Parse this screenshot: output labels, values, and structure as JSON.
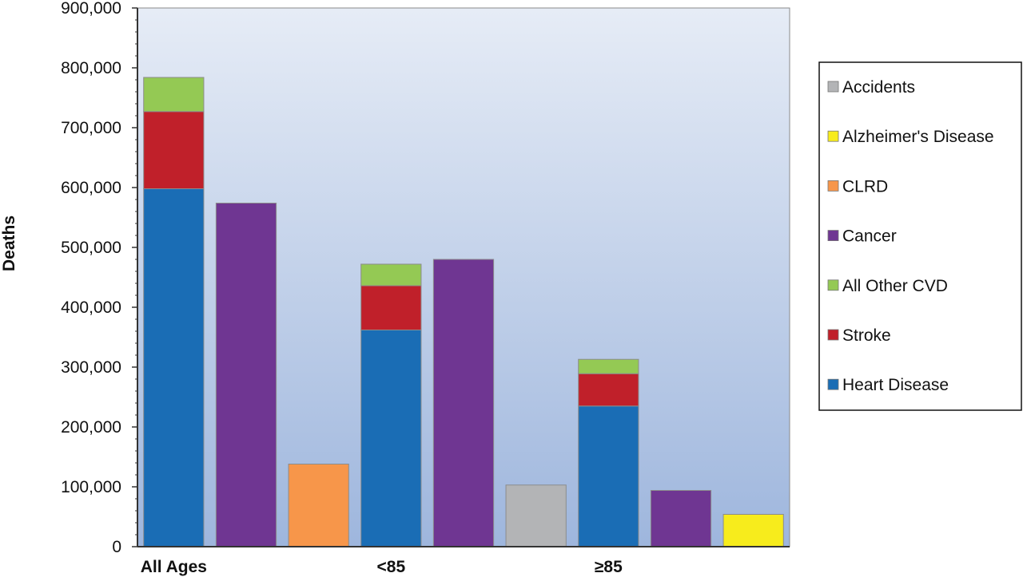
{
  "chart_data": {
    "type": "bar",
    "ylabel": "Deaths",
    "xlabel": "",
    "ylim": [
      0,
      900000
    ],
    "yticks": [
      0,
      100000,
      200000,
      300000,
      400000,
      500000,
      600000,
      700000,
      800000,
      900000
    ],
    "ytick_labels": [
      "0",
      "100,000",
      "200,000",
      "300,000",
      "400,000",
      "500,000",
      "600,000",
      "700,000",
      "800,000",
      "900,000"
    ],
    "categories": [
      "All Ages",
      "<85",
      "≥85"
    ],
    "colors": {
      "Accidents": "#b3b4b6",
      "Alzheimer's Disease": "#f7ec1c",
      "CLRD": "#f7964a",
      "Cancer": "#6f3692",
      "All Other CVD": "#94c954",
      "Stroke": "#c0202a",
      "Heart Disease": "#1a6db5"
    },
    "legend": [
      "Accidents",
      "Alzheimer's Disease",
      "CLRD",
      "Cancer",
      "All Other CVD",
      "Stroke",
      "Heart Disease"
    ],
    "legend_position": "right",
    "groups": [
      {
        "category": "All Ages",
        "bars": [
          {
            "segments": [
              {
                "series": "Heart Disease",
                "value": 598000
              },
              {
                "series": "Stroke",
                "value": 129000
              },
              {
                "series": "All Other CVD",
                "value": 57000
              }
            ]
          },
          {
            "segments": [
              {
                "series": "Cancer",
                "value": 574000
              }
            ]
          },
          {
            "segments": [
              {
                "series": "CLRD",
                "value": 138000
              }
            ]
          }
        ]
      },
      {
        "category": "<85",
        "bars": [
          {
            "segments": [
              {
                "series": "Heart Disease",
                "value": 362000
              },
              {
                "series": "Stroke",
                "value": 74000
              },
              {
                "series": "All Other CVD",
                "value": 36000
              }
            ]
          },
          {
            "segments": [
              {
                "series": "Cancer",
                "value": 480000
              }
            ]
          },
          {
            "segments": [
              {
                "series": "Accidents",
                "value": 103000
              }
            ]
          }
        ]
      },
      {
        "category": "≥85",
        "bars": [
          {
            "segments": [
              {
                "series": "Heart Disease",
                "value": 235000
              },
              {
                "series": "Stroke",
                "value": 54000
              },
              {
                "series": "All Other CVD",
                "value": 24000
              }
            ]
          },
          {
            "segments": [
              {
                "series": "Cancer",
                "value": 94000
              }
            ]
          },
          {
            "segments": [
              {
                "series": "Alzheimer's Disease",
                "value": 54000
              }
            ]
          }
        ]
      }
    ]
  }
}
